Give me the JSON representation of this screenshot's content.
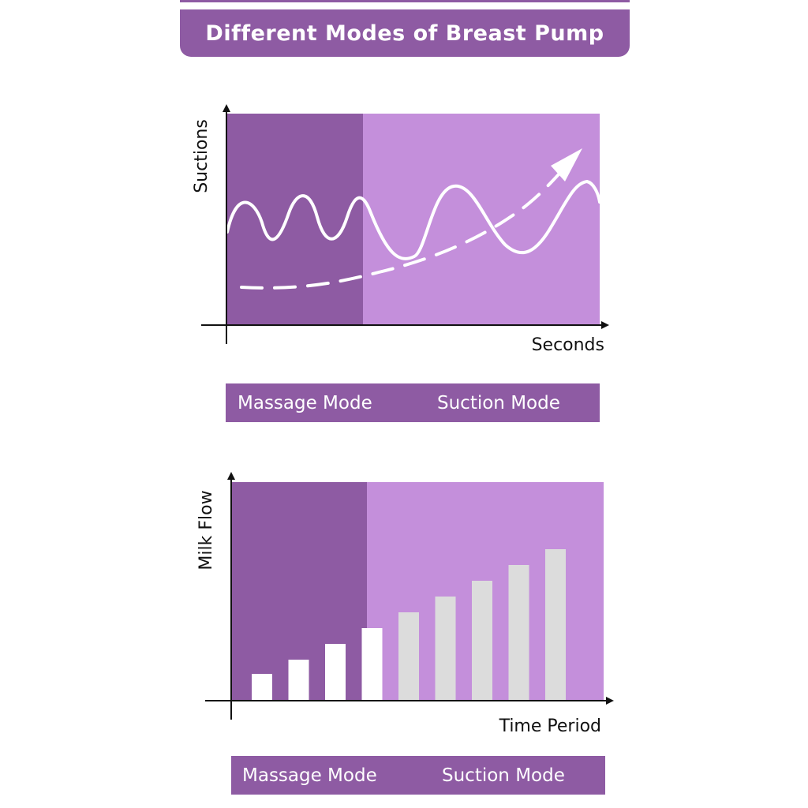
{
  "banner": {
    "title": "Different Modes of Breast Pump"
  },
  "colors": {
    "massage_zone": "#8e5ba3",
    "suction_zone": "#c48fdb",
    "massage_bars": "#ffffff",
    "suction_bars": "#dcdcdc",
    "curve": "#ffffff",
    "axis": "#111111"
  },
  "chart_data": [
    {
      "type": "line",
      "ylabel": "Suctions",
      "xlabel": "Seconds",
      "zones": [
        "Massage Mode",
        "Suction Mode"
      ],
      "series": [
        {
          "style": "solid",
          "description_shape": "wave: short fast cycles in massage zone, slower larger cycles in suction zone"
        },
        {
          "style": "dashed-arrow",
          "trend": "increasing"
        }
      ],
      "legend": {
        "massage": "Massage Mode",
        "suction": "Suction Mode"
      }
    },
    {
      "type": "bar",
      "ylabel": "Milk Flow",
      "xlabel": "Time Period",
      "values": [
        0.17,
        0.26,
        0.36,
        0.46,
        0.56,
        0.66,
        0.76,
        0.86,
        0.96
      ],
      "bar_zone": [
        "massage",
        "massage",
        "massage",
        "massage",
        "suction",
        "suction",
        "suction",
        "suction",
        "suction"
      ],
      "legend": {
        "massage": "Massage Mode",
        "suction": "Suction Mode"
      }
    }
  ]
}
